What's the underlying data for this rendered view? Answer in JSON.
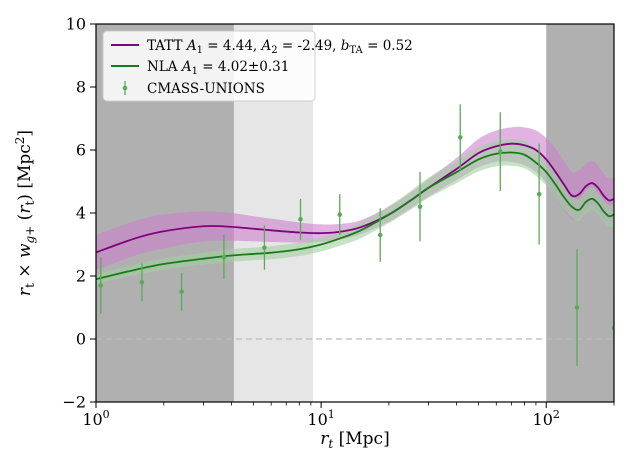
{
  "chart_data": {
    "type": "line",
    "x_scale": "log",
    "xlabel": "r_t [Mpc]",
    "ylabel": "r_t × w_g+ (r_t) [Mpc^2]",
    "xlim": [
      1,
      200
    ],
    "ylim": [
      -2,
      10
    ],
    "x_ticks": [
      {
        "value": 1,
        "base": "10",
        "exp": "0"
      },
      {
        "value": 10,
        "base": "10",
        "exp": "1"
      },
      {
        "value": 100,
        "base": "10",
        "exp": "2"
      }
    ],
    "y_ticks": [
      {
        "value": -2,
        "label": "−2"
      },
      {
        "value": 0,
        "label": "0"
      },
      {
        "value": 2,
        "label": "2"
      },
      {
        "value": 4,
        "label": "4"
      },
      {
        "value": 6,
        "label": "6"
      },
      {
        "value": 8,
        "label": "8"
      },
      {
        "value": 10,
        "label": "10"
      }
    ],
    "shaded_regions": [
      {
        "name": "excluded-small-scales",
        "x_range": [
          1,
          4.1
        ],
        "color": "#b0b0b0"
      },
      {
        "name": "partially-excluded-scales",
        "x_range": [
          4.1,
          9.2
        ],
        "color": "#e6e6e6"
      },
      {
        "name": "excluded-large-scales",
        "x_range": [
          100,
          200
        ],
        "color": "#b0b0b0"
      }
    ],
    "zero_line": {
      "y": 0,
      "color": "#bbbbbb"
    },
    "series": [
      {
        "name": "TATT",
        "legend": "TATT A1 = 4.44, A2 = -2.49, bTA = 0.52",
        "color": "#800080",
        "band_color": "#cc80cc",
        "x": [
          1,
          1.5,
          2,
          3,
          4,
          5,
          6,
          8,
          10,
          12,
          15,
          20,
          25,
          30,
          40,
          50,
          60,
          70,
          80,
          90,
          100,
          110,
          120,
          130,
          140,
          150,
          160,
          170,
          180,
          190,
          200
        ],
        "y": [
          2.75,
          3.2,
          3.42,
          3.58,
          3.56,
          3.5,
          3.45,
          3.38,
          3.36,
          3.4,
          3.55,
          3.95,
          4.4,
          4.8,
          5.4,
          5.9,
          6.12,
          6.2,
          6.15,
          6.0,
          5.7,
          5.3,
          4.9,
          4.55,
          4.6,
          4.85,
          4.95,
          4.8,
          4.55,
          4.4,
          4.45
        ],
        "lower": [
          2.2,
          2.65,
          2.88,
          3.1,
          3.12,
          3.1,
          3.08,
          3.06,
          3.08,
          3.15,
          3.33,
          3.72,
          4.15,
          4.52,
          5.05,
          5.45,
          5.62,
          5.62,
          5.52,
          5.3,
          4.95,
          4.5,
          4.1,
          3.8,
          3.85,
          4.1,
          4.2,
          4.05,
          3.8,
          3.7,
          3.75
        ],
        "upper": [
          3.3,
          3.75,
          3.95,
          4.05,
          4.0,
          3.9,
          3.82,
          3.7,
          3.64,
          3.65,
          3.77,
          4.2,
          4.65,
          5.08,
          5.75,
          6.35,
          6.62,
          6.72,
          6.72,
          6.62,
          6.38,
          6.05,
          5.65,
          5.3,
          5.35,
          5.55,
          5.65,
          5.5,
          5.25,
          5.1,
          5.15
        ]
      },
      {
        "name": "NLA",
        "legend": "NLA A1 = 4.02±0.31",
        "color": "#1a7a1a",
        "band_color": "#a0d0a0",
        "x": [
          1,
          1.5,
          2,
          3,
          4,
          5,
          6,
          8,
          10,
          12,
          15,
          20,
          25,
          30,
          40,
          50,
          60,
          70,
          80,
          90,
          100,
          110,
          120,
          130,
          140,
          150,
          160,
          170,
          180,
          190,
          200
        ],
        "y": [
          1.9,
          2.2,
          2.38,
          2.55,
          2.65,
          2.7,
          2.74,
          2.85,
          3.0,
          3.18,
          3.45,
          3.95,
          4.4,
          4.8,
          5.3,
          5.7,
          5.88,
          5.92,
          5.85,
          5.6,
          5.3,
          4.9,
          4.5,
          4.2,
          4.1,
          4.35,
          4.45,
          4.3,
          4.05,
          3.9,
          3.95
        ],
        "lower": [
          1.75,
          2.03,
          2.2,
          2.36,
          2.45,
          2.5,
          2.53,
          2.64,
          2.78,
          2.95,
          3.2,
          3.68,
          4.1,
          4.48,
          4.95,
          5.32,
          5.48,
          5.5,
          5.42,
          5.18,
          4.88,
          4.5,
          4.12,
          3.85,
          3.75,
          3.98,
          4.08,
          3.95,
          3.7,
          3.55,
          3.6
        ],
        "upper": [
          2.05,
          2.37,
          2.56,
          2.74,
          2.85,
          2.9,
          2.95,
          3.06,
          3.22,
          3.41,
          3.7,
          4.22,
          4.7,
          5.12,
          5.65,
          6.08,
          6.28,
          6.34,
          6.28,
          6.02,
          5.72,
          5.3,
          4.88,
          4.55,
          4.45,
          4.72,
          4.82,
          4.65,
          4.4,
          4.25,
          4.3
        ]
      }
    ],
    "data_points": {
      "name": "CMASS-UNIONS",
      "color": "#5aaa5a",
      "points": [
        {
          "x": 1.05,
          "y": 1.7,
          "err": 0.9
        },
        {
          "x": 1.6,
          "y": 1.8,
          "err": 0.6
        },
        {
          "x": 2.4,
          "y": 1.5,
          "err": 0.6
        },
        {
          "x": 3.7,
          "y": 2.6,
          "err": 0.7
        },
        {
          "x": 5.6,
          "y": 2.9,
          "err": 0.7
        },
        {
          "x": 8.1,
          "y": 3.8,
          "err": 0.65
        },
        {
          "x": 12.1,
          "y": 3.95,
          "err": 0.65
        },
        {
          "x": 18.3,
          "y": 3.3,
          "err": 0.85
        },
        {
          "x": 27.5,
          "y": 4.2,
          "err": 1.1
        },
        {
          "x": 41.5,
          "y": 6.4,
          "err": 1.05
        },
        {
          "x": 62.5,
          "y": 5.95,
          "err": 1.25
        },
        {
          "x": 93.0,
          "y": 4.6,
          "err": 1.6
        },
        {
          "x": 137.0,
          "y": 1.0,
          "err": 1.85
        },
        {
          "x": 200.0,
          "y": 0.35,
          "err": 1.0
        }
      ]
    },
    "legend": {
      "position": "top-left",
      "entries": [
        {
          "key": "TATT",
          "prefix": "TATT ",
          "A1": "4.44",
          "A2": "-2.49",
          "bTA": "0.52"
        },
        {
          "key": "NLA",
          "prefix": "NLA ",
          "A1": "4.02±0.31"
        },
        {
          "key": "CMASS-UNIONS",
          "label": "CMASS-UNIONS"
        }
      ]
    }
  }
}
